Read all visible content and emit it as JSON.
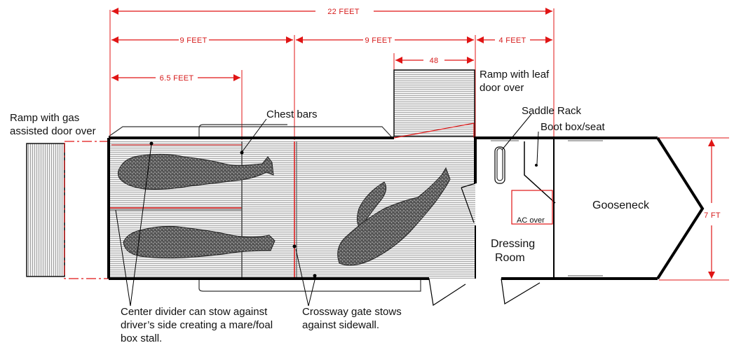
{
  "dimensions": {
    "overall": "22 FEET",
    "front_section": "9 FEET",
    "rear_section": "9 FEET",
    "ramp_width": "48",
    "dressing_room": "4 FEET",
    "stall_length": "6.5 FEET",
    "width": "7 FT"
  },
  "labels": {
    "rear_ramp": [
      "Ramp with gas",
      "assisted door over"
    ],
    "side_ramp": [
      "Ramp with leaf",
      "door over"
    ],
    "chest_bars": "Chest bars",
    "saddle_rack": "Saddle Rack",
    "boot_box": "Boot box/seat",
    "gooseneck": "Gooseneck",
    "ac_over": "AC over",
    "dressing_room": [
      "Dressing",
      "Room"
    ],
    "center_divider": [
      "Center divider can stow against",
      "driver’s side creating a mare/foal",
      "box stall."
    ],
    "crossway_gate": [
      "Crossway gate stows",
      "against sidewall."
    ]
  },
  "colors": {
    "dimension": "#e01515",
    "outline": "#000000",
    "floor": "#cfcfcf",
    "horse": "#555555"
  }
}
